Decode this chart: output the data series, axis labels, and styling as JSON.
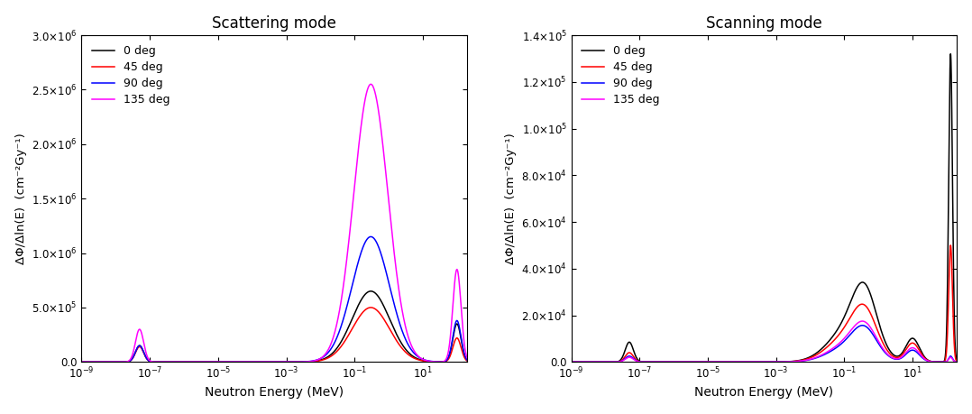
{
  "title_left": "Scattering mode",
  "title_right": "Scanning mode",
  "xlabel": "Neutron Energy (MeV)",
  "ylabel": "ΔΦ/Δln(E)  (cm⁻²Gy⁻¹)",
  "colors": [
    "black",
    "red",
    "blue",
    "magenta"
  ],
  "legend_labels": [
    "0 deg",
    "45 deg",
    "90 deg",
    "135 deg"
  ],
  "xlim": [
    1e-09,
    200.0
  ],
  "ylim_left": [
    0,
    3000000.0
  ],
  "ylim_right": [
    0,
    140000.0
  ],
  "yticks_left": [
    0,
    500000.0,
    1000000.0,
    1500000.0,
    2000000.0,
    2500000.0,
    3000000.0
  ],
  "yticks_right": [
    0,
    20000.0,
    40000.0,
    60000.0,
    80000.0,
    100000.0,
    120000.0,
    140000.0
  ],
  "figsize": [
    10.78,
    4.59
  ],
  "dpi": 100,
  "background": "#ffffff"
}
